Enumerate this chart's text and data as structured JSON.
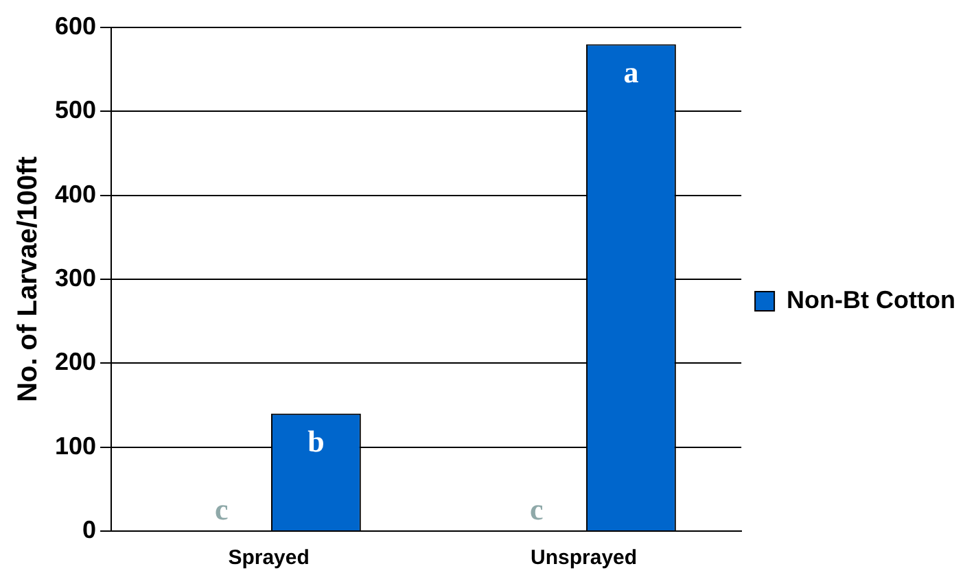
{
  "chart_data": {
    "type": "bar",
    "ylabel": "No. of Larvae/100ft",
    "categories": [
      "Sprayed",
      "Unsprayed"
    ],
    "series": [
      {
        "color": "#8fa9a9",
        "values": [
          0,
          0
        ]
      },
      {
        "name": "Non-Bt Cotton",
        "color": "#0066cc",
        "values": [
          140,
          580
        ]
      }
    ],
    "ylim": [
      0,
      600
    ],
    "yticks": [
      0,
      100,
      200,
      300,
      400,
      500,
      600
    ],
    "grid": "y",
    "legend": "right",
    "annotations": [
      {
        "text": "c",
        "x": "Sprayed",
        "y": 0
      },
      {
        "text": "b",
        "x": "Sprayed",
        "y": 140
      },
      {
        "text": "c",
        "x": "Unsprayed",
        "y": 0
      },
      {
        "text": "a",
        "x": "Unsprayed",
        "y": 580
      }
    ]
  }
}
